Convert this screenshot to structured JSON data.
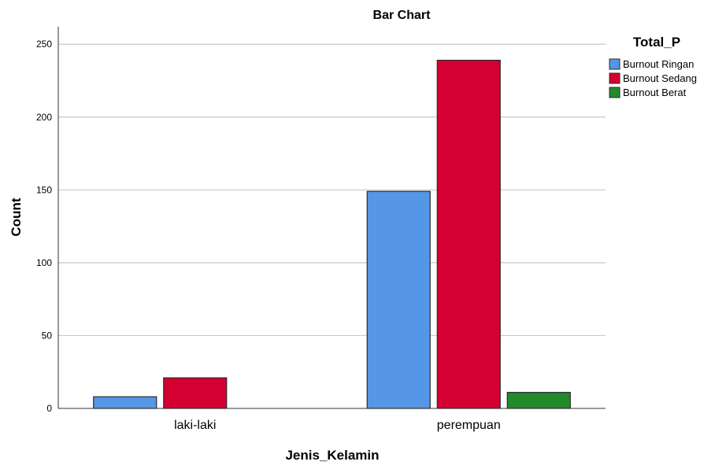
{
  "chart_data": {
    "type": "bar",
    "title": "Bar Chart",
    "xlabel": "Jenis_Kelamin",
    "ylabel": "Count",
    "categories": [
      "laki-laki",
      "perempuan"
    ],
    "series": [
      {
        "name": "Burnout Ringan",
        "values": [
          8,
          149
        ],
        "color": "#5596e6"
      },
      {
        "name": "Burnout Sedang",
        "values": [
          21,
          239
        ],
        "color": "#d50032"
      },
      {
        "name": "Burnout Berat",
        "values": [
          null,
          11
        ],
        "color": "#238a2c"
      }
    ],
    "ylim": [
      0,
      262
    ],
    "yticks": [
      0,
      50,
      100,
      150,
      200,
      250
    ],
    "grid": true,
    "legend": {
      "title": "Total_P",
      "position": "top-right"
    }
  }
}
